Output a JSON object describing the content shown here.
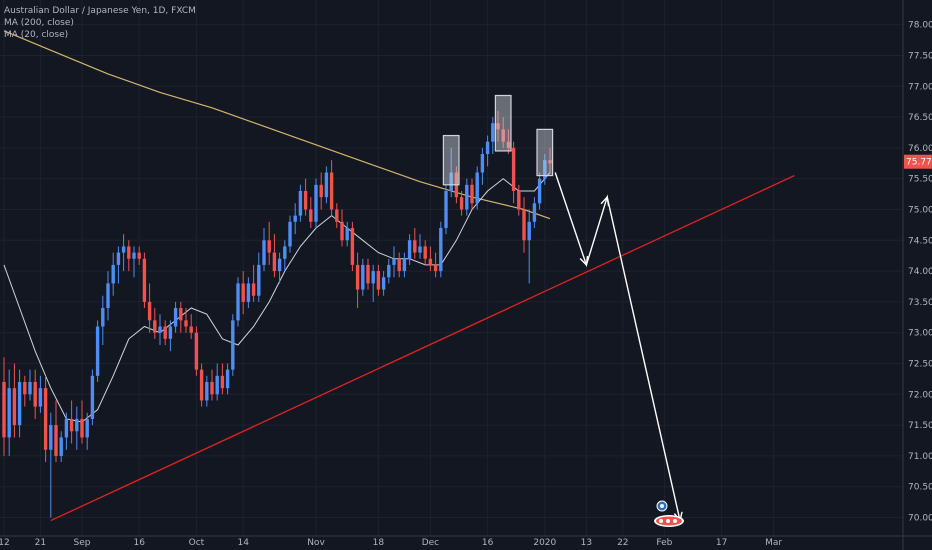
{
  "chart_data": {
    "type": "candlestick",
    "title": "Australian Dollar / Japanese Yen, 1D, FXCM",
    "indicators": [
      {
        "label": "MA (200, close)",
        "color": "#d4b66b"
      },
      {
        "label": "MA (20, close)",
        "color": "#d1d4dc"
      }
    ],
    "colors": {
      "background": "#131722",
      "up": "#4f8df4",
      "down": "#f0524e",
      "trendline": "#e3231f",
      "projection": "#ffffff",
      "price_badge": "#f0524e",
      "highlight_box": "#d1d4dc"
    },
    "last_price": "75.775",
    "ylim": [
      69.7,
      78.4
    ],
    "y_ticks": [
      "78.000",
      "77.500",
      "77.000",
      "76.500",
      "76.000",
      "75.500",
      "75.000",
      "74.500",
      "74.000",
      "73.500",
      "73.000",
      "72.500",
      "72.000",
      "71.500",
      "71.000",
      "70.500",
      "70.000"
    ],
    "x_ticks": [
      {
        "label": "12",
        "day": 0
      },
      {
        "label": "21",
        "day": 7
      },
      {
        "label": "Sep",
        "day": 15
      },
      {
        "label": "16",
        "day": 26
      },
      {
        "label": "Oct",
        "day": 37
      },
      {
        "label": "14",
        "day": 46
      },
      {
        "label": "Nov",
        "day": 60
      },
      {
        "label": "18",
        "day": 72
      },
      {
        "label": "Dec",
        "day": 82
      },
      {
        "label": "16",
        "day": 93
      },
      {
        "label": "2020",
        "day": 104
      },
      {
        "label": "13",
        "day": 112
      },
      {
        "label": "22",
        "day": 119
      },
      {
        "label": "Feb",
        "day": 127
      },
      {
        "label": "17",
        "day": 138
      },
      {
        "label": "Mar",
        "day": 148
      }
    ],
    "candles": [
      [
        0,
        72.2,
        72.6,
        71.0,
        71.3
      ],
      [
        1,
        71.3,
        72.4,
        71.0,
        72.1
      ],
      [
        2,
        72.1,
        72.5,
        71.3,
        71.5
      ],
      [
        3,
        71.5,
        72.4,
        71.3,
        72.2
      ],
      [
        4,
        72.2,
        72.3,
        71.8,
        72.0
      ],
      [
        5,
        72.0,
        72.4,
        71.9,
        72.2
      ],
      [
        6,
        72.2,
        72.4,
        71.6,
        71.8
      ],
      [
        7,
        71.8,
        72.3,
        71.7,
        72.1
      ],
      [
        8,
        72.1,
        72.3,
        70.9,
        71.1
      ],
      [
        9,
        71.1,
        71.7,
        70.0,
        71.5
      ],
      [
        10,
        71.5,
        71.9,
        70.9,
        71.0
      ],
      [
        11,
        71.0,
        71.4,
        70.9,
        71.3
      ],
      [
        12,
        71.3,
        71.7,
        71.1,
        71.6
      ],
      [
        13,
        71.6,
        71.9,
        71.2,
        71.4
      ],
      [
        14,
        71.4,
        71.8,
        71.1,
        71.6
      ],
      [
        15,
        71.6,
        71.9,
        71.2,
        71.3
      ],
      [
        16,
        71.3,
        71.7,
        71.1,
        71.6
      ],
      [
        17,
        71.6,
        72.4,
        71.5,
        72.3
      ],
      [
        18,
        72.3,
        73.2,
        72.2,
        73.1
      ],
      [
        19,
        73.1,
        73.6,
        72.8,
        73.4
      ],
      [
        20,
        73.4,
        74.0,
        73.2,
        73.8
      ],
      [
        21,
        73.8,
        74.3,
        73.6,
        74.1
      ],
      [
        22,
        74.1,
        74.4,
        73.8,
        74.3
      ],
      [
        23,
        74.3,
        74.6,
        74.0,
        74.4
      ],
      [
        24,
        74.4,
        74.5,
        74.0,
        74.2
      ],
      [
        25,
        74.2,
        74.4,
        73.9,
        74.3
      ],
      [
        26,
        74.3,
        74.4,
        74.1,
        74.2
      ],
      [
        27,
        74.2,
        74.3,
        73.4,
        73.5
      ],
      [
        28,
        73.5,
        73.8,
        73.0,
        73.2
      ],
      [
        29,
        73.2,
        73.4,
        72.9,
        73.0
      ],
      [
        30,
        73.0,
        73.3,
        72.8,
        73.1
      ],
      [
        31,
        73.1,
        73.2,
        72.8,
        72.9
      ],
      [
        32,
        72.9,
        73.2,
        72.7,
        73.1
      ],
      [
        33,
        73.1,
        73.5,
        73.0,
        73.4
      ],
      [
        34,
        73.4,
        73.5,
        73.0,
        73.2
      ],
      [
        35,
        73.2,
        73.4,
        73.0,
        73.1
      ],
      [
        36,
        73.1,
        73.3,
        72.9,
        73.0
      ],
      [
        37,
        73.0,
        73.1,
        72.3,
        72.4
      ],
      [
        38,
        72.4,
        72.5,
        71.8,
        71.9
      ],
      [
        39,
        71.9,
        72.3,
        71.8,
        72.2
      ],
      [
        40,
        72.2,
        72.4,
        71.9,
        72.0
      ],
      [
        41,
        72.0,
        72.5,
        71.9,
        72.3
      ],
      [
        42,
        72.3,
        72.5,
        72.0,
        72.1
      ],
      [
        43,
        72.1,
        72.5,
        72.0,
        72.4
      ],
      [
        44,
        72.4,
        73.3,
        72.3,
        73.2
      ],
      [
        45,
        73.2,
        73.9,
        73.1,
        73.8
      ],
      [
        46,
        73.8,
        74.0,
        73.3,
        73.5
      ],
      [
        47,
        73.5,
        73.9,
        73.4,
        73.8
      ],
      [
        48,
        73.8,
        74.1,
        73.5,
        73.6
      ],
      [
        49,
        73.6,
        74.3,
        73.5,
        74.1
      ],
      [
        50,
        74.1,
        74.7,
        74.0,
        74.5
      ],
      [
        51,
        74.5,
        74.8,
        74.1,
        74.3
      ],
      [
        52,
        74.3,
        74.6,
        73.9,
        74.0
      ],
      [
        53,
        74.0,
        74.3,
        73.8,
        74.2
      ],
      [
        54,
        74.2,
        74.5,
        74.0,
        74.4
      ],
      [
        55,
        74.4,
        74.9,
        74.3,
        74.8
      ],
      [
        56,
        74.8,
        75.1,
        74.6,
        74.9
      ],
      [
        57,
        74.9,
        75.4,
        74.8,
        75.3
      ],
      [
        58,
        75.3,
        75.5,
        74.9,
        75.0
      ],
      [
        59,
        75.0,
        75.2,
        74.7,
        74.8
      ],
      [
        60,
        74.8,
        75.5,
        74.7,
        75.4
      ],
      [
        61,
        75.4,
        75.6,
        75.0,
        75.2
      ],
      [
        62,
        75.2,
        75.7,
        75.1,
        75.6
      ],
      [
        63,
        75.6,
        75.8,
        74.9,
        75.0
      ],
      [
        64,
        75.0,
        75.1,
        74.7,
        74.8
      ],
      [
        65,
        74.8,
        75.0,
        74.4,
        74.5
      ],
      [
        66,
        74.5,
        74.8,
        74.4,
        74.7
      ],
      [
        67,
        74.7,
        74.8,
        74.0,
        74.1
      ],
      [
        68,
        74.1,
        74.3,
        73.4,
        73.7
      ],
      [
        69,
        73.7,
        74.2,
        73.6,
        74.1
      ],
      [
        70,
        74.1,
        74.2,
        73.7,
        73.8
      ],
      [
        71,
        73.8,
        74.1,
        73.5,
        74.0
      ],
      [
        72,
        74.0,
        74.1,
        73.6,
        73.7
      ],
      [
        73,
        73.7,
        74.0,
        73.6,
        73.9
      ],
      [
        74,
        73.9,
        74.2,
        73.8,
        74.1
      ],
      [
        75,
        74.1,
        74.4,
        73.9,
        74.2
      ],
      [
        76,
        74.2,
        74.3,
        73.9,
        74.0
      ],
      [
        77,
        74.0,
        74.3,
        73.9,
        74.2
      ],
      [
        78,
        74.2,
        74.6,
        74.1,
        74.5
      ],
      [
        79,
        74.5,
        74.7,
        74.2,
        74.3
      ],
      [
        80,
        74.3,
        74.6,
        74.2,
        74.4
      ],
      [
        81,
        74.4,
        74.5,
        74.1,
        74.2
      ],
      [
        82,
        74.2,
        74.4,
        74.0,
        74.1
      ],
      [
        83,
        74.1,
        74.3,
        73.9,
        74.0
      ],
      [
        84,
        74.0,
        74.8,
        73.9,
        74.7
      ],
      [
        85,
        74.7,
        75.4,
        74.6,
        75.3
      ],
      [
        86,
        75.3,
        76.0,
        75.2,
        75.6
      ],
      [
        87,
        75.6,
        75.7,
        75.1,
        75.2
      ],
      [
        88,
        75.2,
        75.3,
        74.9,
        75.0
      ],
      [
        89,
        75.0,
        75.5,
        74.9,
        75.4
      ],
      [
        90,
        75.4,
        75.5,
        75.0,
        75.1
      ],
      [
        91,
        75.1,
        75.7,
        75.0,
        75.6
      ],
      [
        92,
        75.6,
        76.0,
        75.4,
        75.9
      ],
      [
        93,
        75.9,
        76.2,
        75.7,
        76.1
      ],
      [
        94,
        76.1,
        76.5,
        75.9,
        76.4
      ],
      [
        95,
        76.4,
        76.6,
        76.1,
        76.3
      ],
      [
        96,
        76.3,
        76.5,
        76.0,
        76.1
      ],
      [
        97,
        76.1,
        76.3,
        75.9,
        76.0
      ],
      [
        98,
        76.0,
        76.1,
        75.1,
        75.3
      ],
      [
        99,
        75.3,
        75.4,
        74.9,
        75.0
      ],
      [
        100,
        75.0,
        75.2,
        74.3,
        74.5
      ],
      [
        101,
        74.5,
        75.0,
        73.8,
        74.8
      ],
      [
        102,
        74.8,
        75.2,
        74.7,
        75.1
      ],
      [
        103,
        75.1,
        75.6,
        75.0,
        75.5
      ],
      [
        104,
        75.5,
        75.9,
        75.4,
        75.8
      ],
      [
        105,
        75.8,
        76.0,
        75.6,
        75.75
      ]
    ],
    "ma200": [
      [
        0,
        77.9
      ],
      [
        10,
        77.55
      ],
      [
        20,
        77.2
      ],
      [
        30,
        76.9
      ],
      [
        40,
        76.65
      ],
      [
        50,
        76.35
      ],
      [
        60,
        76.05
      ],
      [
        70,
        75.75
      ],
      [
        80,
        75.45
      ],
      [
        90,
        75.2
      ],
      [
        100,
        75.0
      ],
      [
        105,
        74.85
      ]
    ],
    "ma20": [
      [
        0,
        74.1
      ],
      [
        3,
        73.4
      ],
      [
        6,
        72.7
      ],
      [
        9,
        72.1
      ],
      [
        12,
        71.6
      ],
      [
        15,
        71.55
      ],
      [
        18,
        71.75
      ],
      [
        21,
        72.3
      ],
      [
        24,
        72.9
      ],
      [
        27,
        73.1
      ],
      [
        30,
        73.0
      ],
      [
        33,
        73.2
      ],
      [
        36,
        73.4
      ],
      [
        39,
        73.3
      ],
      [
        42,
        72.9
      ],
      [
        45,
        72.8
      ],
      [
        48,
        73.1
      ],
      [
        51,
        73.5
      ],
      [
        54,
        74.0
      ],
      [
        57,
        74.4
      ],
      [
        60,
        74.7
      ],
      [
        63,
        74.9
      ],
      [
        66,
        74.7
      ],
      [
        69,
        74.5
      ],
      [
        72,
        74.3
      ],
      [
        75,
        74.2
      ],
      [
        78,
        74.2
      ],
      [
        81,
        74.1
      ],
      [
        84,
        74.1
      ],
      [
        87,
        74.5
      ],
      [
        90,
        75.0
      ],
      [
        93,
        75.3
      ],
      [
        96,
        75.5
      ],
      [
        99,
        75.3
      ],
      [
        102,
        75.3
      ],
      [
        105,
        75.6
      ]
    ],
    "trendline": {
      "from": [
        9,
        69.95
      ],
      "to": [
        152,
        75.55
      ]
    },
    "projection_path": [
      [
        106,
        75.6
      ],
      [
        112,
        74.1
      ],
      [
        116,
        75.2
      ],
      [
        130,
        69.95
      ]
    ],
    "highlight_boxes": [
      {
        "day_start": 84.5,
        "day_end": 87.5,
        "price_low": 75.4,
        "price_high": 76.2
      },
      {
        "day_start": 94.5,
        "day_end": 97.5,
        "price_low": 75.95,
        "price_high": 76.85
      },
      {
        "day_start": 102.5,
        "day_end": 105.5,
        "price_low": 75.55,
        "price_high": 76.3
      }
    ]
  }
}
